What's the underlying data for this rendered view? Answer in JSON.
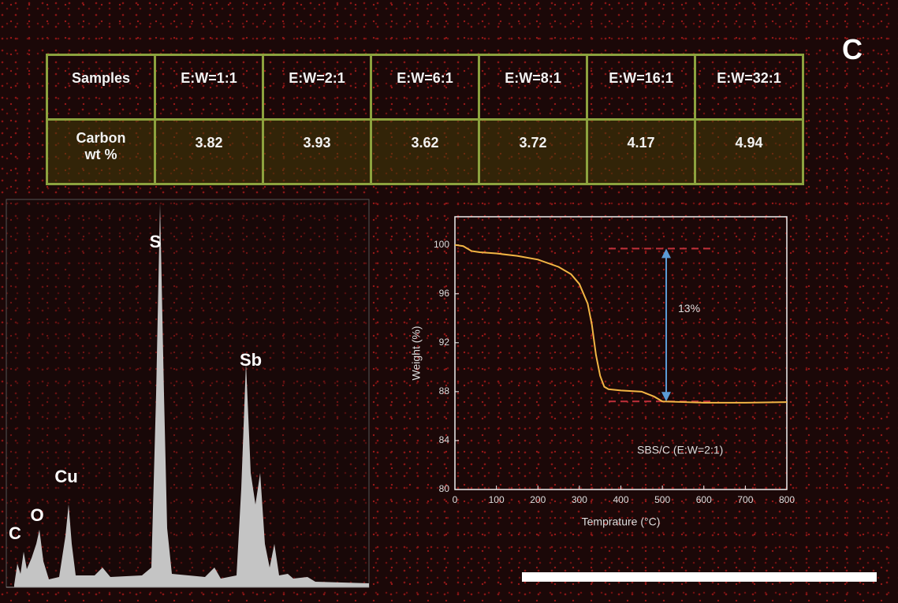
{
  "panel_label": "C",
  "table": {
    "rows": [
      [
        "Samples",
        "E:W=1:1",
        "E:W=2:1",
        "E:W=6:1",
        "E:W=8:1",
        "E:W=16:1",
        "E:W=32:1"
      ],
      [
        "Carbon wt %",
        3.82,
        3.93,
        3.62,
        3.72,
        4.17,
        4.94
      ]
    ]
  },
  "spectrum": {
    "labels": [
      "S",
      "Sb",
      "Cu",
      "O",
      "C"
    ]
  },
  "chart_data": {
    "type": "line",
    "xlabel": "Temprature (°C)",
    "ylabel": "Weight (%)",
    "annotation": "13%",
    "legend_text": "SBS/C (E:W=2:1)",
    "x": [
      0,
      20,
      40,
      60,
      100,
      150,
      200,
      250,
      280,
      300,
      320,
      330,
      340,
      350,
      360,
      370,
      400,
      450,
      480,
      500,
      550,
      600,
      700,
      800
    ],
    "series": [
      {
        "color": "#f2b544",
        "values": [
          100,
          99.9,
          99.5,
          99.4,
          99.3,
          99.1,
          98.8,
          98.2,
          97.6,
          96.8,
          95.2,
          93.5,
          91.0,
          89.3,
          88.4,
          88.2,
          88.1,
          88.0,
          87.6,
          87.2,
          87.15,
          87.1,
          87.1,
          87.15
        ]
      }
    ],
    "hlines": [
      99.7,
      87.2
    ],
    "hline_color": "#c0303a",
    "arrow_color": "#5b9bd5",
    "xlim": [
      0,
      800
    ],
    "ylim": [
      80,
      102.3
    ],
    "xticks": [
      0,
      100,
      200,
      300,
      400,
      500,
      600,
      700,
      800
    ],
    "yticks": [
      80,
      84,
      88,
      92,
      96,
      100
    ]
  }
}
